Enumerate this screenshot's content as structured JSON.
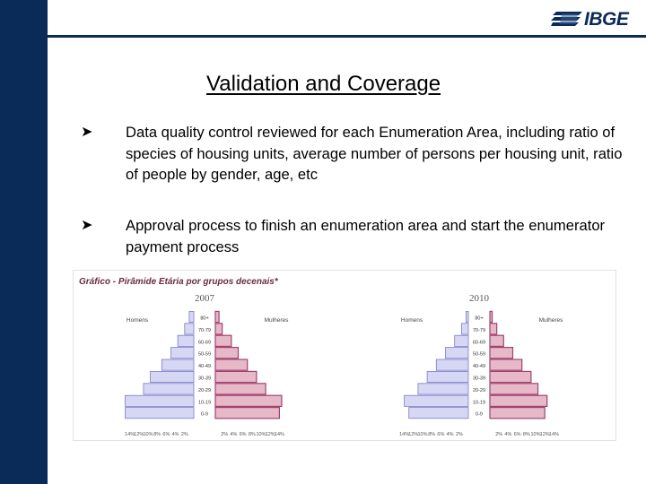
{
  "logo": {
    "text": "IBGE"
  },
  "slide": {
    "title": "Validation and Coverage",
    "bullets": [
      {
        "icon": "arrowhead-bullet-icon",
        "text": "Data quality control reviewed for each Enumeration Area, including ratio of species of housing units, average number of persons per housing unit, ratio of people by gender, age, etc"
      },
      {
        "icon": "arrowhead-bullet-icon",
        "text": "Approval process to finish an enumeration area and start the enumerator payment process"
      }
    ]
  },
  "colors": {
    "navy": "#0a2a58",
    "male_fill": "#d6d6f5",
    "male_stroke": "#7c7cc8",
    "female_fill": "#e6b8c8",
    "female_stroke": "#a04470"
  },
  "chart_data": [
    {
      "type": "bar",
      "panel_title": "Gráfico - Pirâmide Etária por grupos decenais*",
      "title": "2007",
      "left_label": "Homens",
      "right_label": "Mulheres",
      "categories": [
        "0-9",
        "10-19",
        "20-29",
        "30-39",
        "40-49",
        "50-59",
        "60-69",
        "70-79",
        "80+"
      ],
      "series": [
        {
          "name": "Homens",
          "values": [
            15,
            15,
            11,
            9.5,
            7,
            5,
            3.5,
            2,
            1
          ]
        },
        {
          "name": "Mulheres",
          "values": [
            14,
            14.5,
            11,
            9,
            7,
            5,
            3.5,
            1.5,
            0.8
          ]
        }
      ],
      "xticks": [
        "14%",
        "12%",
        "10%",
        "8%",
        "6%",
        "4%",
        "2%",
        "",
        "2%",
        "4%",
        "6%",
        "8%",
        "10%",
        "12%",
        "14%"
      ]
    },
    {
      "type": "bar",
      "title": "2010",
      "left_label": "Homens",
      "right_label": "Mulheres",
      "categories": [
        "0-9",
        "10-19",
        "20-29",
        "30-39",
        "40-49",
        "50-59",
        "60-69",
        "70-79",
        "80+"
      ],
      "series": [
        {
          "name": "Homens",
          "values": [
            13,
            14,
            11,
            9,
            7,
            5,
            3,
            1.5,
            0.5
          ]
        },
        {
          "name": "Mulheres",
          "values": [
            12,
            12.5,
            10.5,
            9,
            7,
            5,
            3,
            1.5,
            0.5
          ]
        }
      ],
      "xticks": [
        "14%",
        "12%",
        "10%",
        "8%",
        "6%",
        "4%",
        "2%",
        "",
        "2%",
        "4%",
        "6%",
        "8%",
        "10%",
        "12%",
        "14%"
      ]
    }
  ]
}
